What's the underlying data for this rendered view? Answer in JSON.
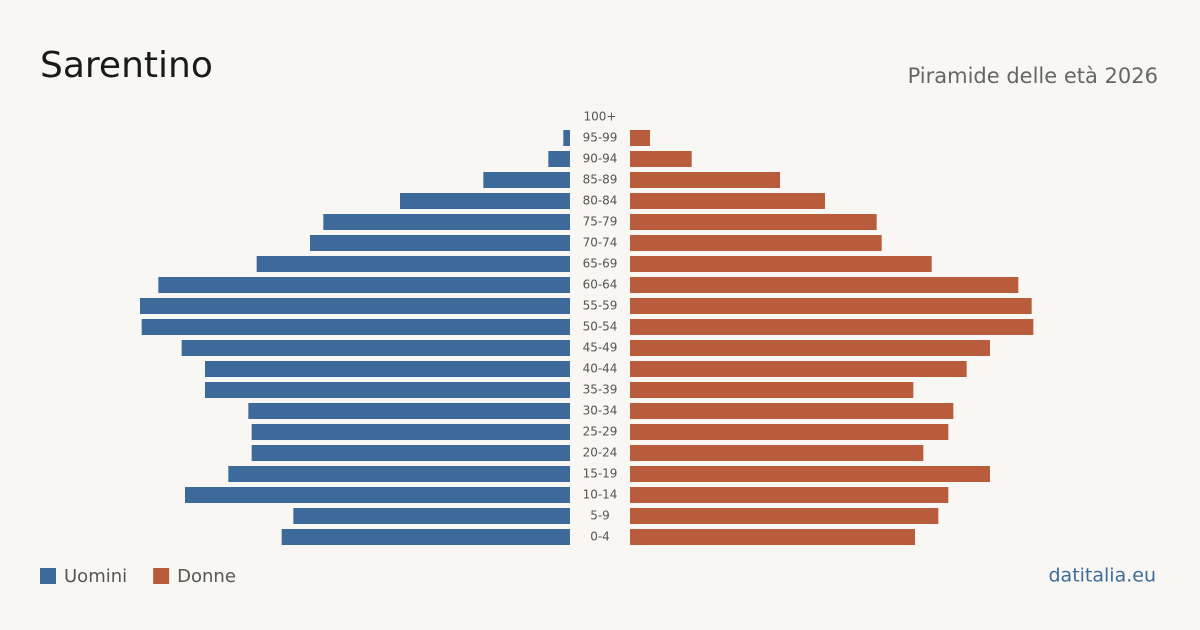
{
  "chart_data": {
    "type": "pyramid",
    "title": "Sarentino",
    "subtitle": "Piramide delle età 2026",
    "source": "datitalia.eu",
    "categories": [
      "100+",
      "95-99",
      "90-94",
      "85-89",
      "80-84",
      "75-79",
      "70-74",
      "65-69",
      "60-64",
      "55-59",
      "50-54",
      "45-49",
      "40-44",
      "35-39",
      "30-34",
      "25-29",
      "20-24",
      "15-19",
      "10-14",
      "5-9",
      "0-4"
    ],
    "series": [
      {
        "name": "Uomini",
        "color": "#3d6a9b",
        "values": [
          0,
          4,
          13,
          52,
          102,
          148,
          156,
          188,
          247,
          258,
          257,
          233,
          219,
          219,
          193,
          191,
          191,
          205,
          231,
          166,
          173
        ]
      },
      {
        "name": "Donne",
        "color": "#b85c3c",
        "values": [
          0,
          12,
          37,
          90,
          117,
          148,
          151,
          181,
          233,
          241,
          242,
          216,
          202,
          170,
          194,
          191,
          176,
          216,
          191,
          185,
          171
        ]
      }
    ]
  }
}
